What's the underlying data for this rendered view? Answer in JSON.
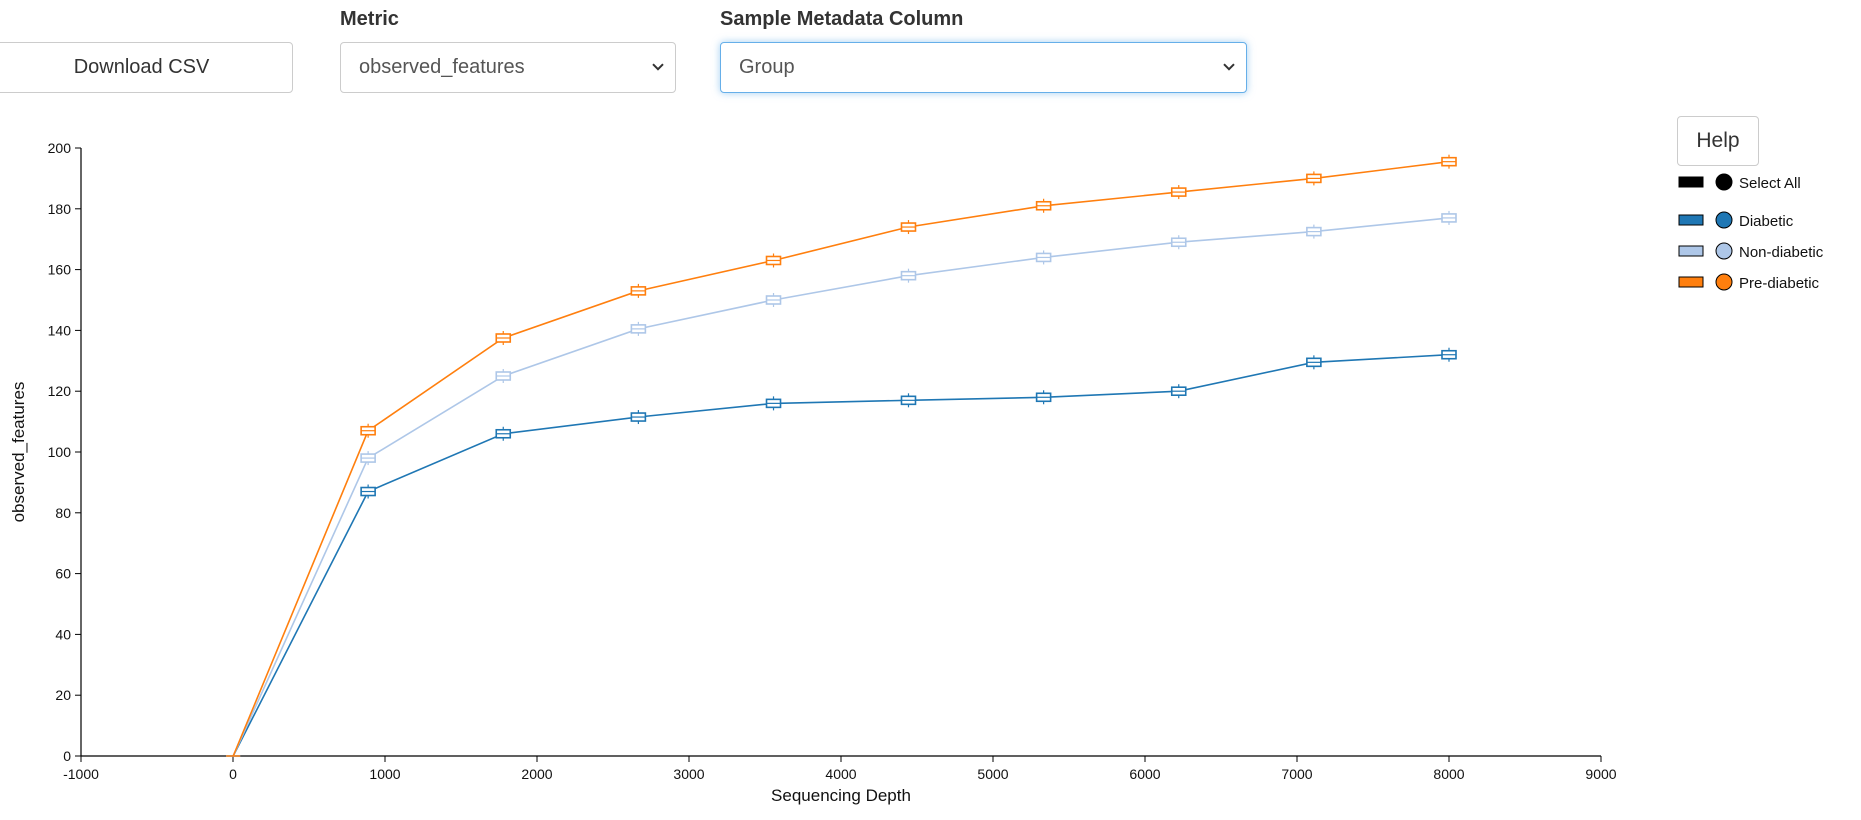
{
  "controls": {
    "download_label": "Download CSV",
    "metric_label": "Metric",
    "metric_value": "observed_features",
    "metadata_label": "Sample Metadata Column",
    "metadata_value": "Group",
    "help_label": "Help"
  },
  "legend": {
    "select_all": "Select All",
    "select_all_color": "#000000"
  },
  "chart_data": {
    "type": "line",
    "xlabel": "Sequencing Depth",
    "ylabel": "observed_features",
    "xlim": [
      -1000,
      9000
    ],
    "ylim": [
      0,
      200
    ],
    "x_ticks": [
      -1000,
      0,
      1000,
      2000,
      3000,
      4000,
      5000,
      6000,
      7000,
      8000,
      9000
    ],
    "y_ticks": [
      0,
      20,
      40,
      60,
      80,
      100,
      120,
      140,
      160,
      180,
      200
    ],
    "grid": false,
    "legend_position": "right",
    "x": [
      1,
      889,
      1778,
      2667,
      3556,
      4444,
      5333,
      6222,
      7111,
      8000
    ],
    "series": [
      {
        "name": "Diabetic",
        "color": "#1f77b4",
        "fill": "#1f77b4",
        "values": [
          0,
          87,
          106,
          111.5,
          116,
          117,
          118,
          120,
          129.5,
          132
        ]
      },
      {
        "name": "Non-diabetic",
        "color": "#aec7e8",
        "fill": "#aec7e8",
        "values": [
          0,
          98,
          125,
          140.5,
          150,
          158,
          164,
          169,
          172.5,
          177
        ]
      },
      {
        "name": "Pre-diabetic",
        "color": "#ff7f0e",
        "fill": "#ff7f0e",
        "values": [
          0,
          107,
          137.5,
          153,
          163,
          174,
          181,
          185.5,
          190,
          195.5
        ]
      }
    ]
  }
}
